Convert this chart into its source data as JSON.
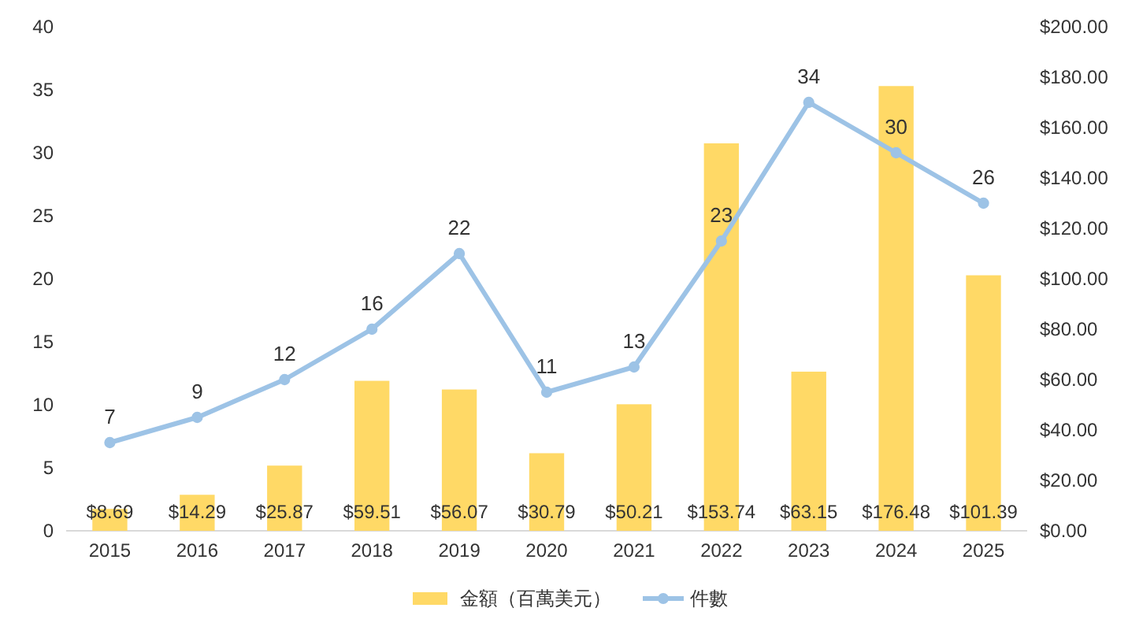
{
  "chart_data": {
    "type": "bar",
    "categories": [
      "2015",
      "2016",
      "2017",
      "2018",
      "2019",
      "2020",
      "2021",
      "2022",
      "2023",
      "2024",
      "2025"
    ],
    "series": [
      {
        "name": "金額（百萬美元）",
        "axis": "y2",
        "color": "#ffd966",
        "values": [
          8.69,
          14.29,
          25.87,
          59.51,
          56.07,
          30.79,
          50.21,
          153.74,
          63.15,
          176.48,
          101.39
        ],
        "value_labels": [
          "$8.69",
          "$14.29",
          "$25.87",
          "$59.51",
          "$56.07",
          "$30.79",
          "$50.21",
          "$153.74",
          "$63.15",
          "$176.48",
          "$101.39"
        ]
      },
      {
        "name": "件數",
        "type": "line",
        "axis": "y",
        "color": "#9dc3e6",
        "values": [
          7,
          9,
          12,
          16,
          22,
          11,
          13,
          23,
          34,
          30,
          26
        ],
        "value_labels": [
          "7",
          "9",
          "12",
          "16",
          "22",
          "11",
          "13",
          "23",
          "34",
          "30",
          "26"
        ]
      }
    ],
    "ylim": [
      0,
      40
    ],
    "yticks": [
      0,
      5,
      10,
      15,
      20,
      25,
      30,
      35,
      40
    ],
    "y2lim": [
      0,
      200
    ],
    "y2ticks": [
      {
        "value": 0,
        "label": "$0.00"
      },
      {
        "value": 20,
        "label": "$20.00"
      },
      {
        "value": 40,
        "label": "$40.00"
      },
      {
        "value": 60,
        "label": "$60.00"
      },
      {
        "value": 80,
        "label": "$80.00"
      },
      {
        "value": 100,
        "label": "$100.00"
      },
      {
        "value": 120,
        "label": "$120.00"
      },
      {
        "value": 140,
        "label": "$140.00"
      },
      {
        "value": 160,
        "label": "$160.00"
      },
      {
        "value": 180,
        "label": "$180.00"
      },
      {
        "value": 200,
        "label": "$200.00"
      }
    ],
    "marker": "circle",
    "legend": "bottom",
    "grid": false
  }
}
